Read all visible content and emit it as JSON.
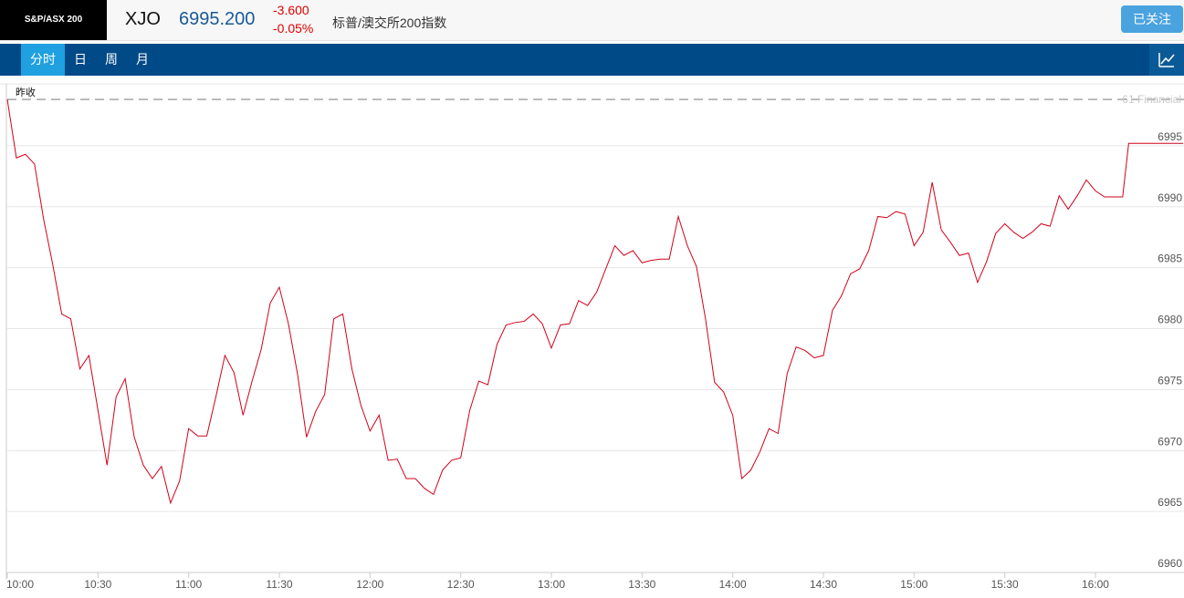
{
  "header": {
    "logo": "S&P/ASX 200",
    "symbol": "XJO",
    "price": "6995.200",
    "change": "-3.600",
    "change_pct": "-0.05%",
    "name": "标普/澳交所200指数",
    "button": "已关注"
  },
  "tabs": [
    "分时",
    "日",
    "周",
    "月"
  ],
  "chart_data": {
    "type": "line",
    "color": "#d0021b",
    "reference": {
      "label": "昨收",
      "value": 6998.8
    },
    "watermark": "61 Financial",
    "x": [
      600,
      603,
      606,
      609,
      612,
      615,
      618,
      621,
      624,
      627,
      630,
      633,
      636,
      639,
      642,
      645,
      648,
      651,
      654,
      657,
      660,
      663,
      666,
      669,
      672,
      675,
      678,
      681,
      684,
      687,
      690,
      693,
      696,
      699,
      702,
      705,
      708,
      711,
      714,
      717,
      720,
      723,
      726,
      729,
      732,
      735,
      738,
      741,
      744,
      747,
      750,
      753,
      756,
      759,
      762,
      765,
      768,
      771,
      774,
      777,
      780,
      783,
      786,
      789,
      792,
      795,
      798,
      801,
      804,
      807,
      810,
      813,
      816,
      819,
      822,
      825,
      828,
      831,
      834,
      837,
      840,
      843,
      846,
      849,
      852,
      855,
      858,
      861,
      864,
      867,
      870,
      873,
      876,
      879,
      882,
      885,
      888,
      891,
      894,
      897,
      900,
      903,
      906,
      909,
      912,
      915,
      918,
      921,
      924,
      927,
      930,
      933,
      936,
      939,
      942,
      945,
      948,
      951,
      954,
      957,
      960,
      963,
      966,
      969,
      971,
      989
    ],
    "values": [
      6998.8,
      6994.0,
      6994.3,
      6993.5,
      6989.0,
      6985.3,
      6981.2,
      6980.8,
      6976.7,
      6977.8,
      6973.3,
      6968.8,
      6974.4,
      6975.9,
      6971.1,
      6968.8,
      6967.7,
      6968.7,
      6965.7,
      6967.5,
      6971.8,
      6971.2,
      6971.2,
      6974.4,
      6977.8,
      6976.4,
      6972.9,
      6975.7,
      6978.3,
      6982.1,
      6983.4,
      6980.4,
      6976.3,
      6971.1,
      6973.2,
      6974.6,
      6980.8,
      6981.2,
      6976.7,
      6973.7,
      6971.6,
      6972.9,
      6969.2,
      6969.3,
      6967.7,
      6967.7,
      6966.9,
      6966.4,
      6968.4,
      6969.2,
      6969.4,
      6973.3,
      6975.7,
      6975.4,
      6978.7,
      6980.3,
      6980.5,
      6980.6,
      6981.2,
      6980.4,
      6978.4,
      6980.3,
      6980.4,
      6982.3,
      6981.9,
      6983.0,
      6984.9,
      6986.8,
      6986.0,
      6986.4,
      6985.4,
      6985.6,
      6985.7,
      6985.7,
      6989.2,
      6986.8,
      6985.1,
      6980.8,
      6975.6,
      6974.8,
      6972.9,
      6967.7,
      6968.4,
      6969.9,
      6971.8,
      6971.4,
      6976.3,
      6978.5,
      6978.2,
      6977.6,
      6977.8,
      6981.5,
      6982.7,
      6984.5,
      6984.9,
      6986.4,
      6989.2,
      6989.1,
      6989.6,
      6989.4,
      6986.8,
      6987.9,
      6992.0,
      6988.1,
      6987.1,
      6986.0,
      6986.2,
      6983.8,
      6985.5,
      6987.8,
      6988.6,
      6987.9,
      6987.4,
      6987.9,
      6988.6,
      6988.4,
      6990.9,
      6989.8,
      6990.9,
      6992.2,
      6991.3,
      6990.8,
      6990.8,
      6990.8,
      6995.2,
      6995.2
    ],
    "xlim": [
      600,
      989
    ],
    "xticks": [
      {
        "value": 600,
        "label": "10:00"
      },
      {
        "value": 630,
        "label": "10:30"
      },
      {
        "value": 660,
        "label": "11:00"
      },
      {
        "value": 690,
        "label": "11:30"
      },
      {
        "value": 720,
        "label": "12:00"
      },
      {
        "value": 750,
        "label": "12:30"
      },
      {
        "value": 780,
        "label": "13:00"
      },
      {
        "value": 810,
        "label": "13:30"
      },
      {
        "value": 840,
        "label": "14:00"
      },
      {
        "value": 870,
        "label": "14:30"
      },
      {
        "value": 900,
        "label": "15:00"
      },
      {
        "value": 930,
        "label": "15:30"
      },
      {
        "value": 960,
        "label": "16:00"
      }
    ],
    "ylim": [
      6960,
      7000
    ],
    "yticks": [
      6960,
      6965,
      6970,
      6975,
      6980,
      6985,
      6990,
      6995
    ],
    "grid": true
  }
}
